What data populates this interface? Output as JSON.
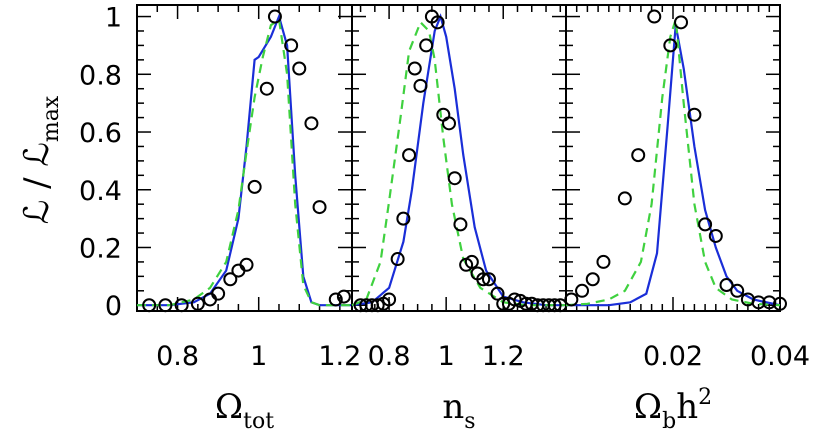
{
  "chart_data": [
    {
      "type": "line",
      "xlabel": "Ω",
      "xlabel_sub": "tot",
      "xlabel_sup": "",
      "ylabel": "ℒ / ℒ",
      "ylabel_sub": "max",
      "xlim": [
        0.7,
        1.23
      ],
      "ylim": [
        -0.02,
        1.04
      ],
      "xticks": [
        0.8,
        1,
        1.2
      ],
      "xtick_labels": [
        "0.8",
        "1",
        "1.2"
      ],
      "yticks": [
        0,
        0.2,
        0.4,
        0.6,
        0.8,
        1
      ],
      "ytick_labels": [
        "0",
        "0.2",
        "0.4",
        "0.6",
        "0.8",
        "1"
      ],
      "colors": {
        "solid": "#1a2ed8",
        "dashed": "#3fd13f",
        "points": "#000000"
      },
      "series": [
        {
          "style": "solid",
          "x": [
            0.7,
            0.78,
            0.84,
            0.88,
            0.92,
            0.95,
            0.97,
            0.99,
            1.0,
            1.03,
            1.05,
            1.07,
            1.09,
            1.11,
            1.13,
            1.15,
            1.23
          ],
          "y": [
            0,
            0,
            0.01,
            0.04,
            0.12,
            0.3,
            0.55,
            0.85,
            0.86,
            0.93,
            1.0,
            0.9,
            0.45,
            0.1,
            0.01,
            0,
            0
          ]
        },
        {
          "style": "dashed",
          "x": [
            0.7,
            0.78,
            0.84,
            0.88,
            0.92,
            0.95,
            0.97,
            0.99,
            1.01,
            1.03,
            1.05,
            1.07,
            1.09,
            1.11,
            1.13,
            1.15,
            1.23
          ],
          "y": [
            0,
            0,
            0.02,
            0.06,
            0.15,
            0.33,
            0.53,
            0.72,
            0.86,
            0.97,
            0.99,
            0.8,
            0.35,
            0.07,
            0.01,
            0,
            0
          ]
        },
        {
          "style": "points",
          "x": [
            0.73,
            0.77,
            0.81,
            0.85,
            0.88,
            0.9,
            0.93,
            0.95,
            0.97,
            0.99,
            1.02,
            1.04,
            1.08,
            1.1,
            1.13,
            1.15,
            1.19,
            1.21
          ],
          "y": [
            0,
            0,
            0,
            0.005,
            0.02,
            0.04,
            0.09,
            0.12,
            0.14,
            0.41,
            0.75,
            1.0,
            0.9,
            0.82,
            0.63,
            0.34,
            0.02,
            0.03
          ]
        }
      ]
    },
    {
      "type": "line",
      "xlabel": "n",
      "xlabel_sub": "s",
      "xlabel_sup": "",
      "xlim": [
        0.67,
        1.42
      ],
      "ylim": [
        -0.02,
        1.04
      ],
      "xticks": [
        0.8,
        1,
        1.2
      ],
      "xtick_labels": [
        "0.8",
        "1",
        "1.2"
      ],
      "yticks": [
        0,
        0.2,
        0.4,
        0.6,
        0.8,
        1
      ],
      "series": [
        {
          "style": "solid",
          "x": [
            0.67,
            0.74,
            0.8,
            0.85,
            0.88,
            0.92,
            0.96,
            0.98,
            1.0,
            1.03,
            1.06,
            1.1,
            1.14,
            1.2,
            1.27,
            1.35,
            1.42
          ],
          "y": [
            0,
            0.01,
            0.06,
            0.22,
            0.4,
            0.7,
            0.95,
            1.0,
            0.93,
            0.75,
            0.52,
            0.27,
            0.12,
            0.03,
            0.01,
            0,
            0
          ]
        },
        {
          "style": "dashed",
          "x": [
            0.67,
            0.72,
            0.77,
            0.8,
            0.84,
            0.87,
            0.91,
            0.94,
            0.96,
            0.99,
            1.02,
            1.06,
            1.12,
            1.2,
            1.28,
            1.35,
            1.42
          ],
          "y": [
            0,
            0.02,
            0.15,
            0.36,
            0.65,
            0.88,
            0.98,
            0.95,
            0.85,
            0.58,
            0.35,
            0.16,
            0.06,
            0.01,
            0,
            0,
            0
          ]
        },
        {
          "style": "points",
          "x": [
            0.7,
            0.72,
            0.74,
            0.76,
            0.78,
            0.8,
            0.83,
            0.85,
            0.87,
            0.89,
            0.91,
            0.93,
            0.95,
            0.97,
            0.99,
            1.01,
            1.03,
            1.05,
            1.07,
            1.09,
            1.11,
            1.13,
            1.15,
            1.18,
            1.2,
            1.22,
            1.24,
            1.26,
            1.28,
            1.3,
            1.32,
            1.34,
            1.36,
            1.38,
            1.4
          ],
          "y": [
            0,
            0,
            0,
            0,
            0.005,
            0.02,
            0.16,
            0.3,
            0.52,
            0.82,
            0.76,
            0.9,
            1.0,
            0.98,
            0.66,
            0.63,
            0.44,
            0.28,
            0.14,
            0.15,
            0.11,
            0.09,
            0.09,
            0.04,
            0.005,
            0.005,
            0.02,
            0.015,
            0.005,
            0.005,
            0,
            0,
            0,
            0,
            0
          ]
        }
      ]
    },
    {
      "type": "line",
      "xlabel": "Ω",
      "xlabel_sub": "b",
      "xlabel_sup": "2",
      "xlabel_mid": "h",
      "xlim": [
        0.0,
        0.04
      ],
      "ylim": [
        -0.02,
        1.04
      ],
      "xticks": [
        0.02,
        0.04
      ],
      "xtick_labels": [
        "0.02",
        "0.04"
      ],
      "yticks": [
        0,
        0.2,
        0.4,
        0.6,
        0.8,
        1
      ],
      "series": [
        {
          "style": "solid",
          "x": [
            0.0,
            0.008,
            0.012,
            0.015,
            0.017,
            0.019,
            0.0205,
            0.022,
            0.024,
            0.026,
            0.028,
            0.03,
            0.032,
            0.035,
            0.04
          ],
          "y": [
            0,
            0,
            0.01,
            0.04,
            0.18,
            0.62,
            0.97,
            0.82,
            0.55,
            0.33,
            0.2,
            0.1,
            0.05,
            0.02,
            0
          ]
        },
        {
          "style": "dashed",
          "x": [
            0.0,
            0.004,
            0.008,
            0.011,
            0.014,
            0.016,
            0.018,
            0.0195,
            0.0205,
            0.022,
            0.024,
            0.026,
            0.028,
            0.031,
            0.035,
            0.04
          ],
          "y": [
            0,
            0.005,
            0.02,
            0.05,
            0.15,
            0.35,
            0.72,
            0.93,
            0.99,
            0.7,
            0.35,
            0.15,
            0.06,
            0.02,
            0.005,
            0
          ]
        },
        {
          "style": "points",
          "x": [
            0.001,
            0.003,
            0.005,
            0.007,
            0.011,
            0.0135,
            0.0165,
            0.0195,
            0.0215,
            0.024,
            0.026,
            0.028,
            0.03,
            0.032,
            0.034,
            0.036,
            0.038,
            0.04
          ],
          "y": [
            0.02,
            0.05,
            0.09,
            0.15,
            0.37,
            0.52,
            1.0,
            0.9,
            0.98,
            0.66,
            0.28,
            0.24,
            0.07,
            0.05,
            0.02,
            0.01,
            0.01,
            0.005
          ]
        }
      ]
    }
  ]
}
